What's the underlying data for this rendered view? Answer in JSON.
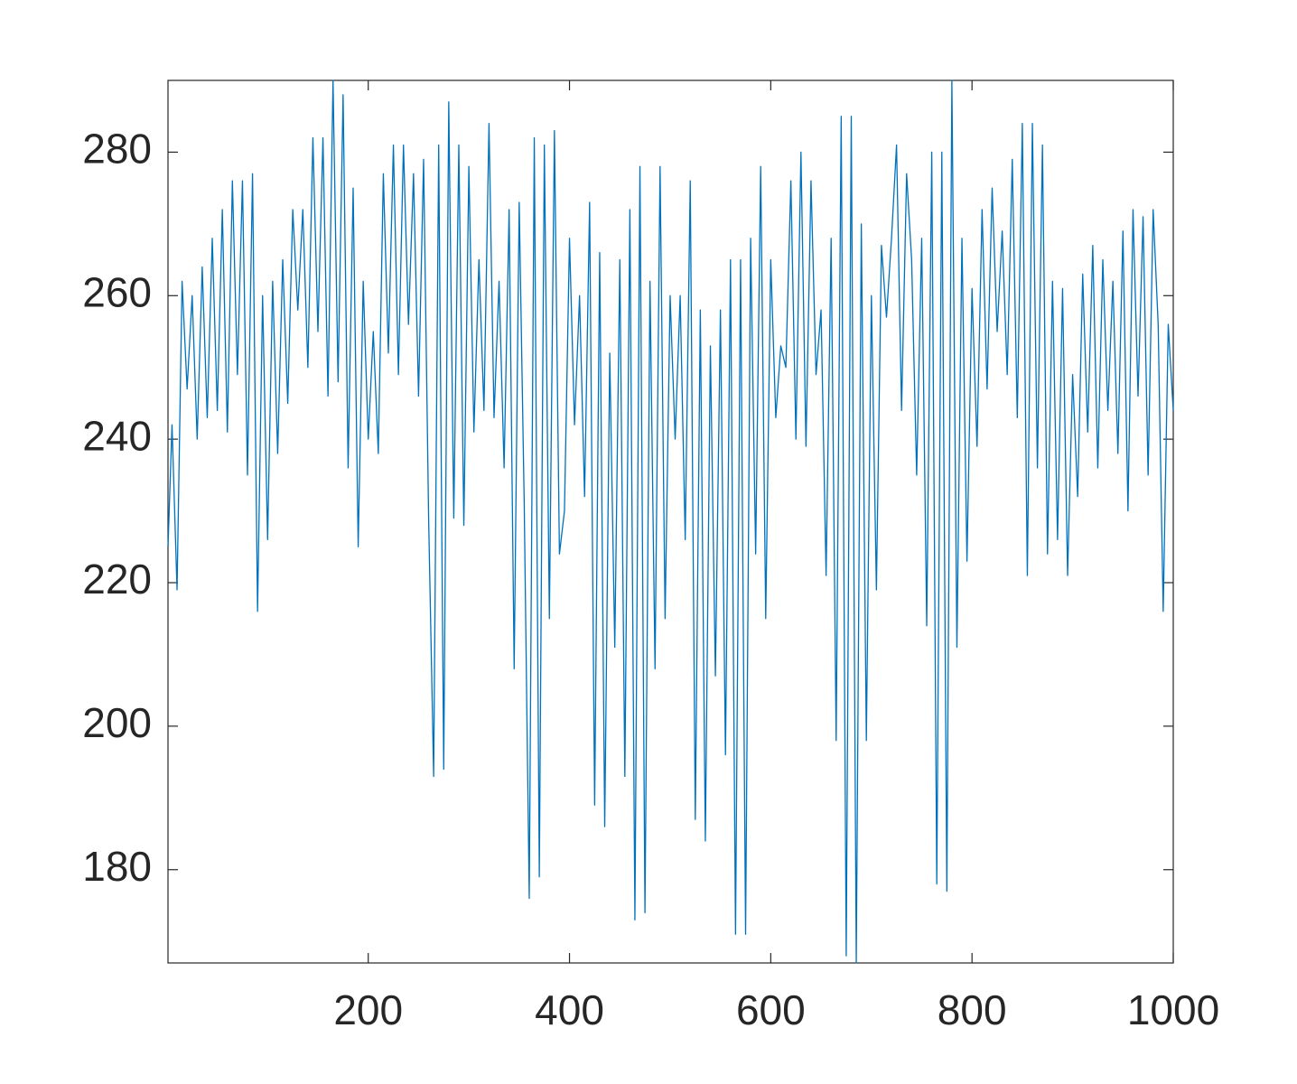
{
  "chart_data": {
    "type": "line",
    "x": [
      1,
      5,
      10,
      15,
      20,
      25,
      30,
      35,
      40,
      45,
      50,
      55,
      60,
      65,
      70,
      75,
      80,
      85,
      90,
      95,
      100,
      105,
      110,
      115,
      120,
      125,
      130,
      135,
      140,
      145,
      150,
      155,
      160,
      165,
      170,
      175,
      180,
      185,
      190,
      195,
      200,
      205,
      210,
      215,
      220,
      225,
      230,
      235,
      240,
      245,
      250,
      255,
      260,
      265,
      270,
      275,
      280,
      285,
      290,
      295,
      300,
      305,
      310,
      315,
      320,
      325,
      330,
      335,
      340,
      345,
      350,
      355,
      360,
      365,
      370,
      375,
      380,
      385,
      390,
      395,
      400,
      405,
      410,
      415,
      420,
      425,
      430,
      435,
      440,
      445,
      450,
      455,
      460,
      465,
      470,
      475,
      480,
      485,
      490,
      495,
      500,
      505,
      510,
      515,
      520,
      525,
      530,
      535,
      540,
      545,
      550,
      555,
      560,
      565,
      570,
      575,
      580,
      585,
      590,
      595,
      600,
      605,
      610,
      615,
      620,
      625,
      630,
      635,
      640,
      645,
      650,
      655,
      660,
      665,
      670,
      675,
      680,
      685,
      690,
      695,
      700,
      705,
      710,
      715,
      720,
      725,
      730,
      735,
      740,
      745,
      750,
      755,
      760,
      765,
      770,
      775,
      780,
      785,
      790,
      795,
      800,
      805,
      810,
      815,
      820,
      825,
      830,
      835,
      840,
      845,
      850,
      855,
      860,
      865,
      870,
      875,
      880,
      885,
      890,
      895,
      900,
      905,
      910,
      915,
      920,
      925,
      930,
      935,
      940,
      945,
      950,
      955,
      960,
      965,
      970,
      975,
      980,
      985,
      990,
      995,
      1000
    ],
    "series": [
      {
        "color": "#0072bd",
        "values": [
          225,
          242,
          219,
          262,
          247,
          260,
          240,
          264,
          243,
          268,
          244,
          272,
          241,
          276,
          249,
          276,
          235,
          277,
          216,
          260,
          226,
          262,
          238,
          265,
          245,
          272,
          258,
          272,
          250,
          282,
          255,
          282,
          246,
          290,
          248,
          288,
          236,
          275,
          225,
          262,
          240,
          255,
          238,
          277,
          252,
          281,
          249,
          281,
          256,
          277,
          246,
          279,
          229,
          193,
          281,
          194,
          287,
          229,
          281,
          228,
          278,
          241,
          265,
          244,
          284,
          243,
          262,
          236,
          272,
          208,
          273,
          231,
          176,
          282,
          179,
          281,
          215,
          283,
          224,
          230,
          268,
          242,
          260,
          232,
          273,
          189,
          266,
          186,
          252,
          211,
          265,
          193,
          272,
          173,
          278,
          174,
          262,
          208,
          278,
          215,
          260,
          240,
          260,
          226,
          276,
          187,
          258,
          184,
          253,
          207,
          258,
          196,
          265,
          171,
          265,
          171,
          268,
          224,
          278,
          215,
          265,
          243,
          253,
          250,
          276,
          240,
          280,
          239,
          276,
          249,
          258,
          221,
          268,
          198,
          285,
          168,
          285,
          167,
          270,
          198,
          260,
          219,
          267,
          257,
          268,
          281,
          244,
          277,
          265,
          235,
          268,
          214,
          280,
          178,
          280,
          177,
          290,
          211,
          268,
          223,
          261,
          239,
          272,
          247,
          275,
          255,
          269,
          249,
          279,
          243,
          284,
          221,
          284,
          236,
          281,
          224,
          262,
          226,
          261,
          221,
          249,
          232,
          263,
          241,
          267,
          236,
          265,
          244,
          262,
          238,
          269,
          230,
          272,
          246,
          271,
          235,
          272,
          256,
          216,
          256,
          244
        ]
      }
    ],
    "xlim": [
      1,
      1000
    ],
    "ylim": [
      167,
      290
    ],
    "xticks": [
      200,
      400,
      600,
      800,
      1000
    ],
    "yticks": [
      180,
      200,
      220,
      240,
      260,
      280
    ]
  }
}
